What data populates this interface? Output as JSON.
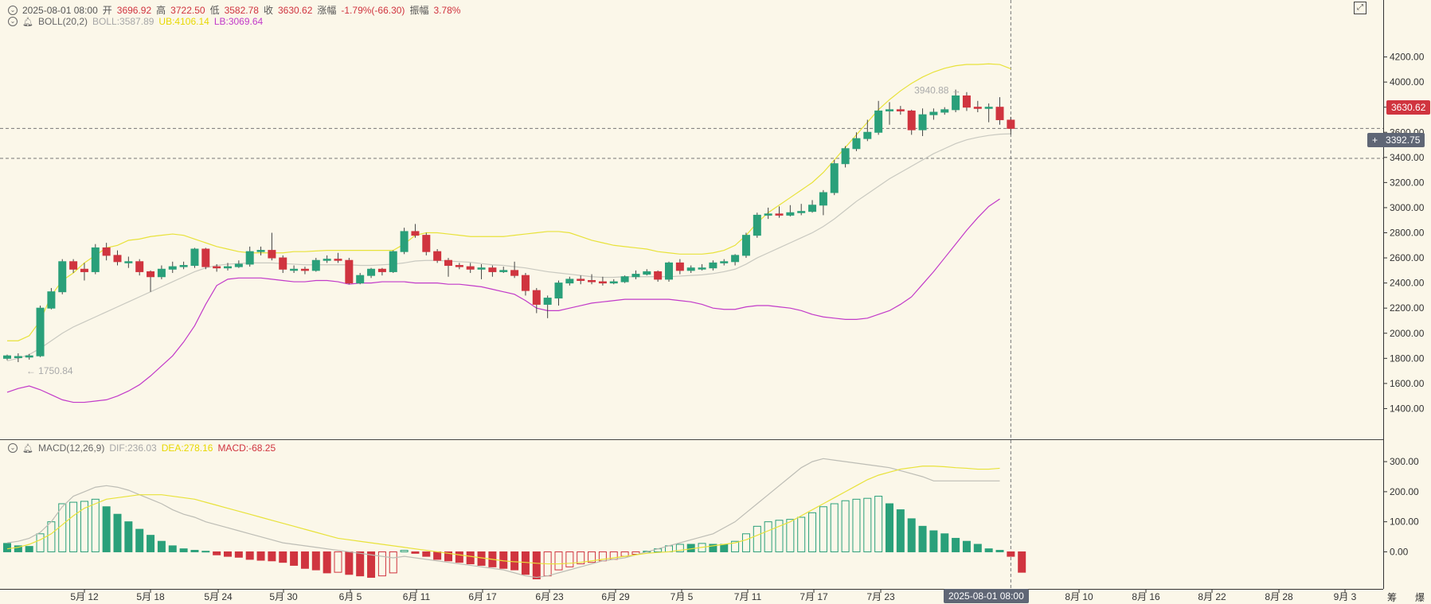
{
  "header": {
    "date": "2025-08-01 08:00",
    "open_label": "开",
    "open": "3696.92",
    "high_label": "高",
    "high": "3722.50",
    "low_label": "低",
    "low": "3582.78",
    "close_label": "收",
    "close": "3630.62",
    "change_label": "涨幅",
    "change": "-1.79%(-66.30)",
    "amp_label": "振幅",
    "amp": "3.78%"
  },
  "boll_header": {
    "name": "BOLL(20,2)",
    "boll": "BOLL:3587.89",
    "ub": "UB:4106.14",
    "lb": "LB:3069.64"
  },
  "macd_header": {
    "name": "MACD(12,26,9)",
    "dif": "DIF:236.03",
    "dea": "DEA:278.16",
    "macd": "MACD:-68.25"
  },
  "price_tags": {
    "last": "3630.62",
    "crosshair": "3392.75",
    "crosshair_time": "2025-08-01 08:00"
  },
  "annotations": {
    "high": "3940.88",
    "low": "1750.84"
  },
  "footer": {
    "left": "筹",
    "right": "爆"
  },
  "colors": {
    "up": "#2aa07a",
    "down": "#d0343f",
    "ub": "#e8e23a",
    "mid": "#c9c9c0",
    "lb": "#c23ac9",
    "dea": "#e8e23a",
    "dif": "#bdbdb5"
  },
  "chart_data": [
    {
      "type": "candlestick",
      "y_axis": {
        "ylim": [
          1200,
          4400
        ],
        "ticks": [
          "1400.00",
          "1600.00",
          "1800.00",
          "2000.00",
          "2200.00",
          "2400.00",
          "2600.00",
          "2800.00",
          "3000.00",
          "3200.00",
          "3400.00",
          "3600.00",
          "3800.00",
          "4000.00",
          "4200.00"
        ]
      },
      "x_axis": {
        "ticks": [
          "5月 12",
          "5月 18",
          "5月 24",
          "5月 30",
          "6月 5",
          "6月 11",
          "6月 17",
          "6月 23",
          "6月 29",
          "7月 5",
          "7月 11",
          "7月 17",
          "7月 23",
          "8月 10",
          "8月 16",
          "8月 22",
          "8月 28",
          "9月 3"
        ]
      },
      "candles": [
        [
          1800,
          1820,
          1785,
          1830
        ],
        [
          1805,
          1815,
          1770,
          1840
        ],
        [
          1810,
          1820,
          1790,
          1835
        ],
        [
          1820,
          2200,
          1810,
          2220
        ],
        [
          2200,
          2330,
          2190,
          2360
        ],
        [
          2330,
          2570,
          2310,
          2590
        ],
        [
          2570,
          2510,
          2480,
          2590
        ],
        [
          2510,
          2490,
          2420,
          2560
        ],
        [
          2490,
          2680,
          2470,
          2710
        ],
        [
          2680,
          2620,
          2580,
          2720
        ],
        [
          2620,
          2570,
          2540,
          2660
        ],
        [
          2570,
          2570,
          2520,
          2610
        ],
        [
          2570,
          2490,
          2460,
          2590
        ],
        [
          2490,
          2450,
          2330,
          2500
        ],
        [
          2450,
          2510,
          2430,
          2540
        ],
        [
          2510,
          2530,
          2480,
          2570
        ],
        [
          2530,
          2540,
          2510,
          2570
        ],
        [
          2540,
          2670,
          2520,
          2680
        ],
        [
          2670,
          2530,
          2510,
          2680
        ],
        [
          2530,
          2520,
          2490,
          2550
        ],
        [
          2520,
          2530,
          2500,
          2560
        ],
        [
          2530,
          2550,
          2520,
          2580
        ],
        [
          2550,
          2650,
          2530,
          2690
        ],
        [
          2650,
          2660,
          2620,
          2690
        ],
        [
          2660,
          2600,
          2580,
          2800
        ],
        [
          2600,
          2510,
          2480,
          2620
        ],
        [
          2510,
          2510,
          2480,
          2540
        ],
        [
          2510,
          2500,
          2470,
          2530
        ],
        [
          2500,
          2580,
          2490,
          2600
        ],
        [
          2580,
          2590,
          2560,
          2620
        ],
        [
          2590,
          2580,
          2560,
          2640
        ],
        [
          2580,
          2400,
          2390,
          2600
        ],
        [
          2400,
          2460,
          2390,
          2480
        ],
        [
          2460,
          2510,
          2440,
          2520
        ],
        [
          2510,
          2490,
          2460,
          2520
        ],
        [
          2490,
          2650,
          2480,
          2660
        ],
        [
          2650,
          2810,
          2630,
          2840
        ],
        [
          2810,
          2780,
          2760,
          2870
        ],
        [
          2780,
          2650,
          2620,
          2800
        ],
        [
          2650,
          2580,
          2560,
          2670
        ],
        [
          2580,
          2540,
          2450,
          2600
        ],
        [
          2540,
          2530,
          2510,
          2560
        ],
        [
          2530,
          2510,
          2480,
          2560
        ],
        [
          2510,
          2520,
          2430,
          2550
        ],
        [
          2520,
          2490,
          2450,
          2540
        ],
        [
          2490,
          2500,
          2480,
          2530
        ],
        [
          2500,
          2460,
          2440,
          2570
        ],
        [
          2460,
          2340,
          2300,
          2480
        ],
        [
          2340,
          2230,
          2160,
          2360
        ],
        [
          2230,
          2280,
          2120,
          2300
        ],
        [
          2280,
          2400,
          2220,
          2420
        ],
        [
          2400,
          2430,
          2380,
          2450
        ],
        [
          2430,
          2420,
          2390,
          2460
        ],
        [
          2420,
          2410,
          2390,
          2470
        ],
        [
          2410,
          2400,
          2380,
          2450
        ],
        [
          2400,
          2410,
          2390,
          2430
        ],
        [
          2410,
          2450,
          2400,
          2460
        ],
        [
          2450,
          2470,
          2430,
          2500
        ],
        [
          2470,
          2490,
          2460,
          2510
        ],
        [
          2490,
          2430,
          2410,
          2500
        ],
        [
          2430,
          2560,
          2410,
          2570
        ],
        [
          2560,
          2500,
          2470,
          2590
        ],
        [
          2500,
          2520,
          2480,
          2540
        ],
        [
          2520,
          2520,
          2500,
          2550
        ],
        [
          2520,
          2560,
          2500,
          2580
        ],
        [
          2560,
          2570,
          2540,
          2590
        ],
        [
          2570,
          2620,
          2540,
          2630
        ],
        [
          2620,
          2780,
          2600,
          2800
        ],
        [
          2780,
          2940,
          2760,
          2960
        ],
        [
          2940,
          2950,
          2910,
          3000
        ],
        [
          2950,
          2940,
          2920,
          3010
        ],
        [
          2940,
          2960,
          2930,
          3020
        ],
        [
          2960,
          2970,
          2940,
          3030
        ],
        [
          2970,
          3020,
          2960,
          3060
        ],
        [
          3020,
          3120,
          2940,
          3140
        ],
        [
          3120,
          3350,
          3100,
          3380
        ],
        [
          3350,
          3470,
          3320,
          3490
        ],
        [
          3470,
          3550,
          3450,
          3600
        ],
        [
          3550,
          3600,
          3530,
          3700
        ],
        [
          3600,
          3770,
          3580,
          3850
        ],
        [
          3770,
          3780,
          3660,
          3840
        ],
        [
          3780,
          3770,
          3740,
          3810
        ],
        [
          3770,
          3620,
          3580,
          3780
        ],
        [
          3620,
          3740,
          3570,
          3790
        ],
        [
          3740,
          3760,
          3700,
          3790
        ],
        [
          3760,
          3780,
          3740,
          3800
        ],
        [
          3780,
          3890,
          3760,
          3940
        ],
        [
          3890,
          3800,
          3770,
          3920
        ],
        [
          3800,
          3790,
          3760,
          3850
        ],
        [
          3790,
          3800,
          3680,
          3830
        ],
        [
          3800,
          3700,
          3660,
          3880
        ],
        [
          3697,
          3631,
          3583,
          3723
        ]
      ],
      "boll": {
        "ub": [
          1940,
          1940,
          1980,
          2100,
          2300,
          2420,
          2480,
          2560,
          2620,
          2680,
          2700,
          2740,
          2750,
          2770,
          2780,
          2790,
          2780,
          2750,
          2720,
          2690,
          2670,
          2650,
          2640,
          2640,
          2640,
          2640,
          2650,
          2650,
          2655,
          2660,
          2660,
          2660,
          2660,
          2660,
          2660,
          2660,
          2710,
          2780,
          2800,
          2800,
          2790,
          2780,
          2770,
          2770,
          2770,
          2770,
          2780,
          2790,
          2800,
          2810,
          2810,
          2800,
          2770,
          2740,
          2720,
          2700,
          2690,
          2680,
          2670,
          2650,
          2640,
          2630,
          2630,
          2630,
          2640,
          2660,
          2700,
          2780,
          2880,
          2960,
          3020,
          3080,
          3140,
          3200,
          3280,
          3380,
          3480,
          3580,
          3680,
          3780,
          3860,
          3930,
          3990,
          4040,
          4080,
          4110,
          4130,
          4140,
          4140,
          4145,
          4140,
          4106
        ],
        "mid": [
          1780,
          1800,
          1830,
          1880,
          1940,
          2000,
          2050,
          2090,
          2130,
          2170,
          2210,
          2250,
          2290,
          2330,
          2370,
          2410,
          2450,
          2490,
          2520,
          2540,
          2550,
          2555,
          2560,
          2560,
          2560,
          2555,
          2550,
          2545,
          2545,
          2545,
          2545,
          2545,
          2540,
          2540,
          2545,
          2550,
          2560,
          2575,
          2580,
          2580,
          2575,
          2570,
          2565,
          2555,
          2545,
          2540,
          2530,
          2520,
          2505,
          2490,
          2480,
          2470,
          2460,
          2450,
          2445,
          2445,
          2450,
          2450,
          2450,
          2450,
          2450,
          2455,
          2460,
          2465,
          2475,
          2490,
          2510,
          2550,
          2600,
          2640,
          2680,
          2720,
          2760,
          2800,
          2850,
          2910,
          2980,
          3050,
          3110,
          3170,
          3230,
          3280,
          3330,
          3380,
          3430,
          3470,
          3510,
          3540,
          3560,
          3575,
          3585,
          3588
        ],
        "lb": [
          1530,
          1560,
          1580,
          1550,
          1510,
          1470,
          1450,
          1450,
          1460,
          1470,
          1500,
          1540,
          1590,
          1660,
          1740,
          1820,
          1930,
          2060,
          2230,
          2380,
          2430,
          2440,
          2440,
          2440,
          2430,
          2420,
          2410,
          2410,
          2420,
          2420,
          2410,
          2390,
          2400,
          2400,
          2410,
          2410,
          2410,
          2400,
          2400,
          2400,
          2390,
          2390,
          2380,
          2370,
          2350,
          2330,
          2310,
          2260,
          2200,
          2180,
          2180,
          2200,
          2220,
          2240,
          2250,
          2260,
          2270,
          2270,
          2270,
          2270,
          2270,
          2260,
          2250,
          2230,
          2200,
          2190,
          2190,
          2210,
          2220,
          2220,
          2210,
          2200,
          2180,
          2150,
          2130,
          2120,
          2110,
          2110,
          2120,
          2150,
          2180,
          2230,
          2290,
          2390,
          2490,
          2600,
          2710,
          2820,
          2920,
          3010,
          3069
        ],
        "labels_shown": true
      }
    },
    {
      "type": "bar",
      "y_axis": {
        "ylim": [
          -110,
          340
        ],
        "ticks": [
          "0.00",
          "100.00",
          "200.00",
          "300.00"
        ]
      },
      "macd": [
        28,
        20,
        18,
        60,
        100,
        160,
        165,
        168,
        175,
        150,
        125,
        100,
        75,
        55,
        35,
        20,
        10,
        5,
        2,
        -10,
        -15,
        -18,
        -25,
        -28,
        -30,
        -35,
        -45,
        -55,
        -60,
        -70,
        -68,
        -75,
        -80,
        -85,
        -80,
        -70,
        5,
        -5,
        -15,
        -25,
        -30,
        -35,
        -40,
        -45,
        -50,
        -55,
        -60,
        -75,
        -90,
        -80,
        -60,
        -50,
        -40,
        -35,
        -30,
        -25,
        -15,
        -8,
        2,
        10,
        20,
        25,
        25,
        28,
        25,
        25,
        35,
        60,
        85,
        100,
        105,
        108,
        115,
        130,
        150,
        160,
        170,
        175,
        178,
        185,
        160,
        140,
        110,
        85,
        70,
        60,
        45,
        35,
        25,
        10,
        5,
        -15,
        -68
      ],
      "dea": [
        10,
        15,
        25,
        40,
        60,
        90,
        120,
        145,
        160,
        175,
        180,
        185,
        190,
        190,
        190,
        185,
        180,
        175,
        165,
        155,
        145,
        135,
        125,
        115,
        105,
        95,
        85,
        75,
        65,
        55,
        45,
        40,
        35,
        30,
        25,
        20,
        15,
        10,
        5,
        0,
        -5,
        -10,
        -15,
        -20,
        -25,
        -30,
        -33,
        -35,
        -38,
        -40,
        -40,
        -38,
        -35,
        -30,
        -25,
        -20,
        -15,
        -10,
        -5,
        -2,
        0,
        5,
        10,
        15,
        20,
        25,
        30,
        40,
        55,
        70,
        85,
        100,
        120,
        140,
        160,
        180,
        200,
        220,
        240,
        255,
        265,
        275,
        280,
        285,
        285,
        283,
        280,
        278,
        275,
        275,
        278
      ],
      "dif": [
        30,
        35,
        45,
        65,
        100,
        150,
        185,
        200,
        215,
        220,
        215,
        205,
        190,
        175,
        160,
        140,
        125,
        115,
        100,
        90,
        80,
        70,
        60,
        50,
        40,
        30,
        25,
        20,
        15,
        10,
        5,
        0,
        -5,
        -10,
        -15,
        -20,
        -15,
        -20,
        -25,
        -30,
        -35,
        -40,
        -45,
        -50,
        -55,
        -60,
        -70,
        -80,
        -85,
        -80,
        -70,
        -60,
        -50,
        -40,
        -30,
        -25,
        -20,
        -10,
        0,
        10,
        20,
        30,
        40,
        50,
        60,
        80,
        100,
        130,
        160,
        190,
        220,
        250,
        280,
        300,
        310,
        305,
        300,
        295,
        290,
        285,
        280,
        270,
        260,
        250,
        236,
        236,
        236,
        236,
        236,
        236,
        236
      ],
      "zero_line": true
    }
  ]
}
